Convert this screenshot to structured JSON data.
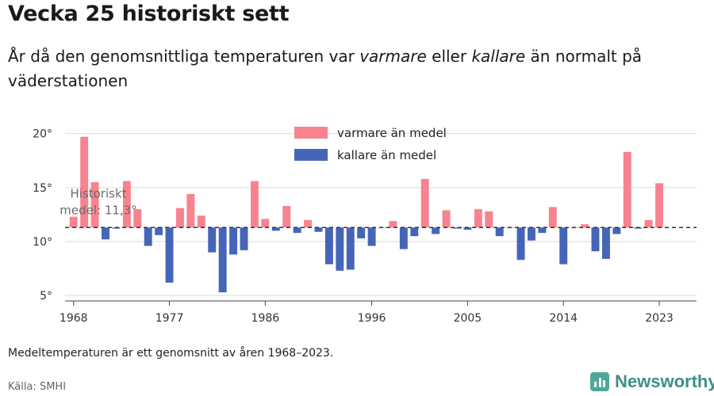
{
  "header": {
    "title": "Vecka 25 historiskt sett",
    "subtitle_part1": "År då den genomsnittliga temperaturen var ",
    "subtitle_em1": "varmare",
    "subtitle_part2": " eller ",
    "subtitle_em2": "kallare",
    "subtitle_part3": " än normalt på väderstationen"
  },
  "footer": {
    "note": "Medeltemperaturen är ett genomsnitt av åren 1968–2023.",
    "source": "Källa: SMHI",
    "brand": "Newsworthy"
  },
  "colors": {
    "warm": "#f7838f",
    "cold": "#4565b8",
    "baseline": "#333333",
    "grid": "#d9d9d9"
  },
  "chart_data": {
    "type": "bar",
    "title": "Vecka 25 historiskt sett",
    "ylim": [
      4.5,
      21
    ],
    "xlim": [
      1967.2,
      2026.5
    ],
    "yticks": [
      5,
      10,
      15,
      20
    ],
    "ytick_labels": [
      "5°",
      "10°",
      "15°",
      "20°"
    ],
    "xticks": [
      1968,
      1977,
      1986,
      1996,
      2005,
      2014,
      2023
    ],
    "xtick_labels": [
      "1968",
      "1977",
      "1986",
      "1996",
      "2005",
      "2014",
      "2023"
    ],
    "grid": true,
    "baseline": {
      "value": 11.3,
      "label_line1": "Historiskt",
      "label_line2": "medel: 11,3°"
    },
    "legend": {
      "position": "top-center",
      "warm_label": "varmare än medel",
      "cold_label": "kallare än medel"
    },
    "x": [
      1968,
      1969,
      1970,
      1971,
      1972,
      1973,
      1974,
      1975,
      1976,
      1977,
      1978,
      1979,
      1980,
      1981,
      1982,
      1983,
      1984,
      1985,
      1986,
      1987,
      1988,
      1989,
      1990,
      1991,
      1992,
      1993,
      1994,
      1995,
      1996,
      1997,
      1998,
      1999,
      2000,
      2001,
      2002,
      2003,
      2004,
      2005,
      2006,
      2007,
      2008,
      2009,
      2010,
      2011,
      2012,
      2013,
      2014,
      2015,
      2016,
      2017,
      2018,
      2019,
      2020,
      2021,
      2022,
      2023
    ],
    "values": [
      12.3,
      19.7,
      15.5,
      10.2,
      11.2,
      15.6,
      13.0,
      9.6,
      10.6,
      6.2,
      13.1,
      14.4,
      12.4,
      9.0,
      5.3,
      8.8,
      9.2,
      15.6,
      12.1,
      11.0,
      13.3,
      10.8,
      12.0,
      10.9,
      7.9,
      7.3,
      7.4,
      10.3,
      9.6,
      11.3,
      11.9,
      9.3,
      10.5,
      15.8,
      10.7,
      12.9,
      11.2,
      11.1,
      13.0,
      12.8,
      10.5,
      11.3,
      8.3,
      10.1,
      10.8,
      13.2,
      7.9,
      11.3,
      11.6,
      9.1,
      8.4,
      10.7,
      18.3,
      11.2,
      12.0,
      15.4
    ]
  }
}
